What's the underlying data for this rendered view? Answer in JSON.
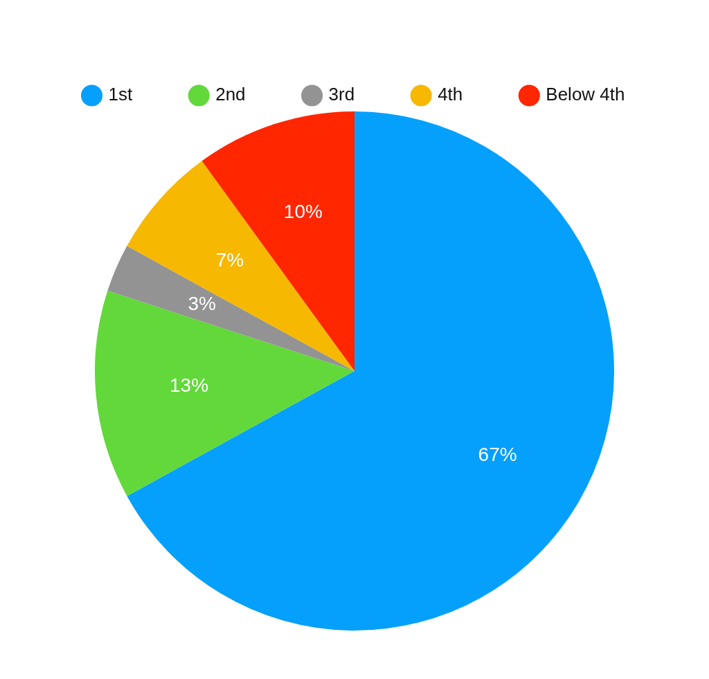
{
  "chart_data": {
    "type": "pie",
    "categories": [
      "1st",
      "2nd",
      "3rd",
      "4th",
      "Below 4th"
    ],
    "values": [
      67,
      13,
      3,
      7,
      10
    ],
    "colors": [
      "#05a0fb",
      "#62d83a",
      "#939393",
      "#f6b800",
      "#ff2600"
    ],
    "value_labels": [
      "67%",
      "13%",
      "3%",
      "7%",
      "10%"
    ],
    "legend": "top"
  }
}
